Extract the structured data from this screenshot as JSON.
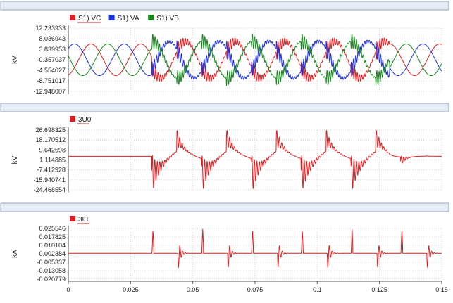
{
  "chart_data": [
    {
      "type": "line",
      "ylabel": "kV",
      "yticks": [
        "12.233933",
        "8.036943",
        "3.839953",
        "-0.357037",
        "-4.554027",
        "-8.751017",
        "-12.948007"
      ],
      "ylim": [
        -12.948007,
        12.233933
      ],
      "xlim": [
        0,
        0.15
      ],
      "grid": true,
      "legend": "top-left",
      "series": [
        {
          "name": "S1) VC",
          "color": "#e8191c"
        },
        {
          "name": "S1) VA",
          "color": "#1a2ee6"
        },
        {
          "name": "S1) VB",
          "color": "#118a18"
        }
      ]
    },
    {
      "type": "line",
      "ylabel": "kV",
      "yticks": [
        "26.698325",
        "18.170512",
        "9.642698",
        "1.114885",
        "-7.412928",
        "-15.940741",
        "-24.468554"
      ],
      "ylim": [
        -24.468554,
        26.698325
      ],
      "xlim": [
        0,
        0.15
      ],
      "grid": true,
      "legend": "top-left",
      "series": [
        {
          "name": "3U0",
          "color": "#e8191c"
        }
      ]
    },
    {
      "type": "line",
      "ylabel": "kA",
      "yticks": [
        "0.025546",
        "0.017825",
        "0.010104",
        "0.002384",
        "-0.005337",
        "-0.013058",
        "-0.020779"
      ],
      "ylim": [
        -0.020779,
        0.025546
      ],
      "xlim": [
        0,
        0.15
      ],
      "xticks": [
        "0",
        "0.025",
        "0.05",
        "0.075",
        "0.1",
        "0.125",
        "0.15"
      ],
      "grid": true,
      "legend": "top-left",
      "series": [
        {
          "name": "3I0",
          "color": "#e8191c"
        }
      ]
    }
  ]
}
